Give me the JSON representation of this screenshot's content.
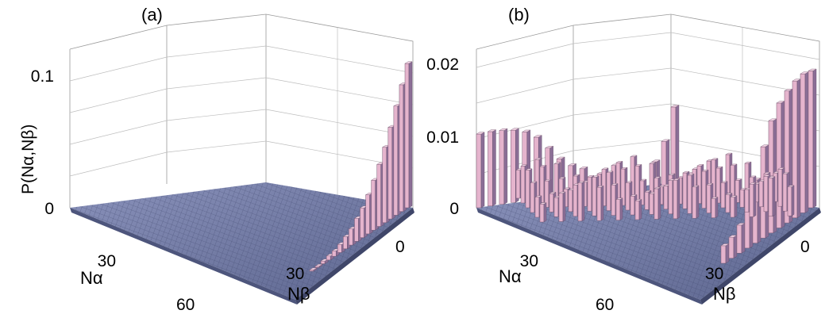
{
  "chart_data": [
    {
      "type": "bar3d",
      "panel_label": "(a)",
      "zlabel": "P(Nα,Nβ)",
      "xlabel": "Nβ",
      "ylabel": "Nα",
      "x_range": [
        0,
        60
      ],
      "y_range": [
        0,
        60
      ],
      "z_range": [
        0,
        0.12
      ],
      "x_ticks": [
        "0",
        "30"
      ],
      "y_ticks": [
        "30",
        "60"
      ],
      "z_ticks": [
        "0",
        "0.1"
      ],
      "series": [
        {
          "along": "Nα at Nβ = 0",
          "values": [
            0.107,
            0.094,
            0.081,
            0.068,
            0.056,
            0.046,
            0.037,
            0.029,
            0.022,
            0.017,
            0.012,
            0.009,
            0.006,
            0.004,
            0.003,
            0.002,
            0.001,
            0.001
          ]
        }
      ],
      "base_grid": "flat surface near 0 over Nα, Nβ in [0, 60]"
    },
    {
      "type": "bar3d",
      "panel_label": "(b)",
      "xlabel": "Nβ",
      "ylabel": "Nα",
      "x_range": [
        0,
        60
      ],
      "y_range": [
        0,
        60
      ],
      "z_range": [
        0,
        0.022
      ],
      "x_ticks": [
        "0",
        "30"
      ],
      "y_ticks": [
        "30",
        "60"
      ],
      "z_ticks": [
        "0",
        "0.01",
        "0.02"
      ],
      "series": [
        {
          "along": "Nα at Nβ = 0",
          "values": [
            0.0195,
            0.0198,
            0.0195,
            0.0188,
            0.0178,
            0.016,
            0.013,
            0.009,
            0.006,
            0.004,
            0.003,
            0.0025
          ]
        },
        {
          "along": "Nβ at Nα = 60",
          "values": [
            0.0105,
            0.0106,
            0.0105,
            0.0103,
            0.0098,
            0.0088,
            0.007,
            0.0052,
            0.004,
            0.0033
          ]
        },
        {
          "along": "diagonal peak",
          "values": [
            0.013,
            0.009,
            0.007
          ]
        }
      ],
      "base_grid": "flat surface near 0 over Nα, Nβ in [0, 60]"
    }
  ]
}
